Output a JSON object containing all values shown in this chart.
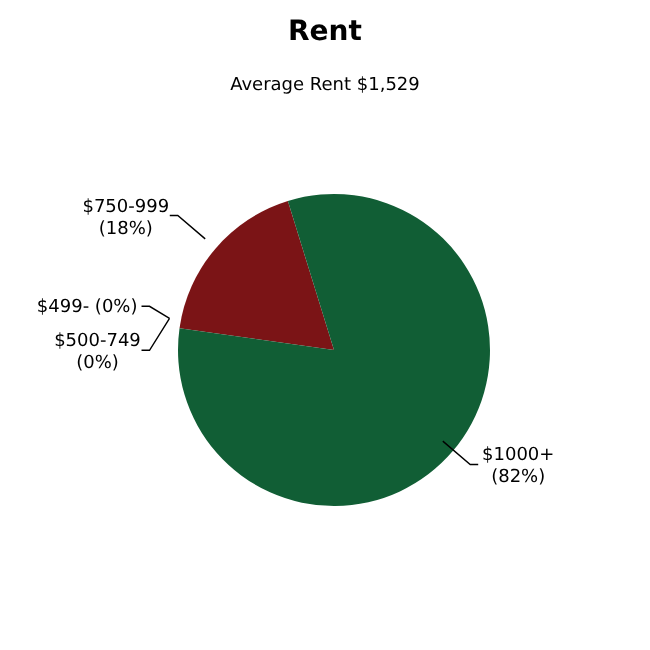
{
  "chart_data": {
    "type": "pie",
    "title": "Rent",
    "subtitle": "Average Rent  $1,529",
    "categories": [
      "$499-",
      "$500-749",
      "$750-999",
      "$1000+"
    ],
    "values": [
      0,
      0,
      18,
      82
    ],
    "value_labels": [
      "(0%)",
      "(0%)",
      "(18%)",
      "(82%)"
    ],
    "colors": [
      "#2a7a4a",
      "#a02020",
      "#7b1416",
      "#115e35"
    ]
  }
}
